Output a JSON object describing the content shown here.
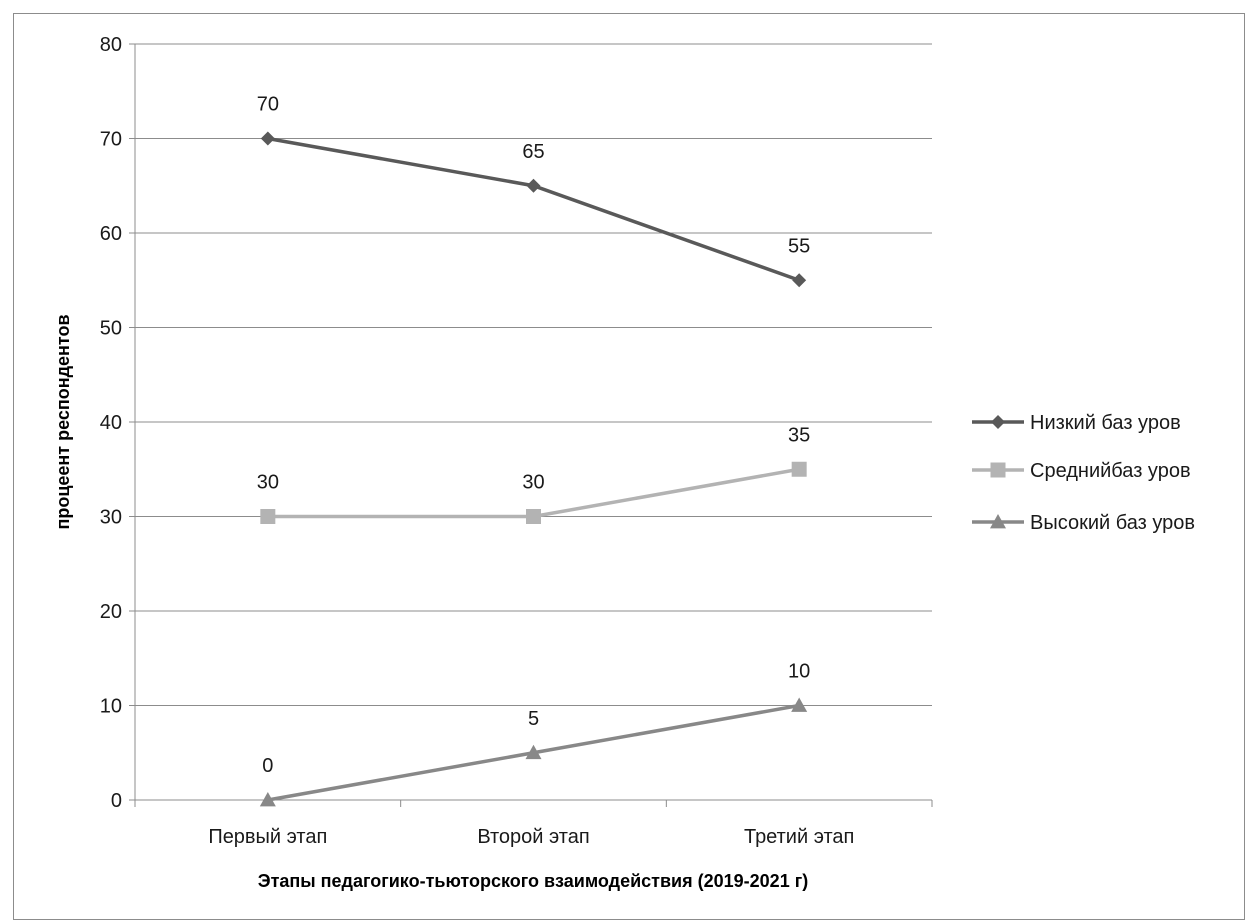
{
  "chart_data": {
    "type": "line",
    "title": "",
    "xlabel": "Этапы педагогико-тьюторского  взаимодействия (2019-2021 г)",
    "ylabel": "процеент респондентов",
    "categories": [
      "Первый этап",
      "Второй этап",
      "Третий этап"
    ],
    "ylim": [
      0,
      80
    ],
    "yticks": [
      0,
      10,
      20,
      30,
      40,
      50,
      60,
      70,
      80
    ],
    "grid": true,
    "legend_position": "right",
    "series": [
      {
        "name": "Низкий баз уров",
        "values": [
          70,
          65,
          55
        ],
        "color": "#595959",
        "marker": "diamond"
      },
      {
        "name": "Среднийбаз уров",
        "values": [
          30,
          30,
          35
        ],
        "color": "#b3b3b3",
        "marker": "square"
      },
      {
        "name": "Высокий баз уров",
        "values": [
          0,
          5,
          10
        ],
        "color": "#888888",
        "marker": "triangle"
      }
    ]
  }
}
